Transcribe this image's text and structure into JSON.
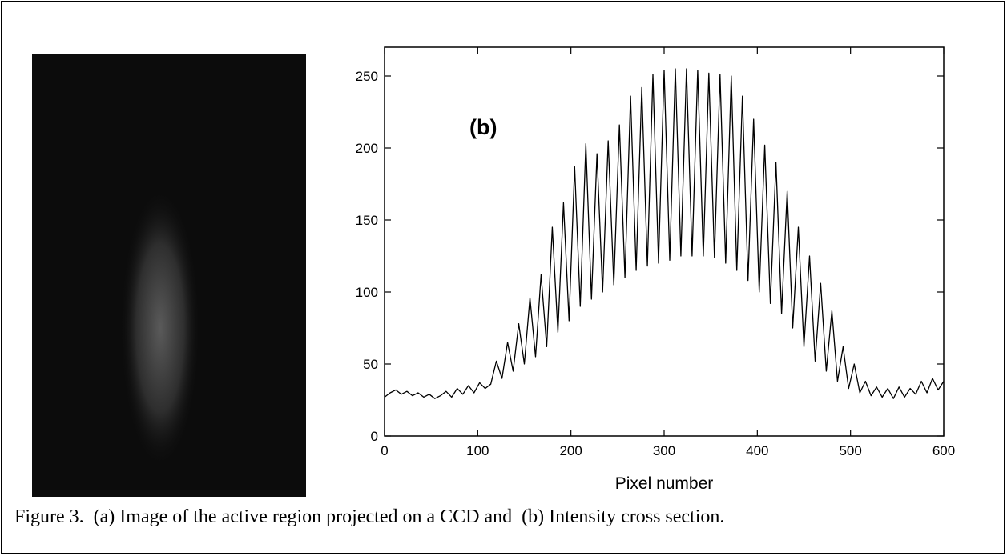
{
  "chart_data": {
    "type": "line",
    "annotation": "(b)",
    "xlabel": "Pixel number",
    "xlim": [
      0,
      600
    ],
    "xticks": [
      0,
      100,
      200,
      300,
      400,
      500,
      600
    ],
    "ylim": [
      0,
      270
    ],
    "yticks": [
      0,
      50,
      100,
      150,
      200,
      250
    ],
    "x": [
      0,
      6,
      12,
      18,
      24,
      30,
      36,
      42,
      48,
      54,
      60,
      66,
      72,
      78,
      84,
      90,
      96,
      102,
      108,
      114,
      120,
      126,
      132,
      138,
      144,
      150,
      156,
      162,
      168,
      174,
      180,
      186,
      192,
      198,
      204,
      210,
      216,
      222,
      228,
      234,
      240,
      246,
      252,
      258,
      264,
      270,
      276,
      282,
      288,
      294,
      300,
      306,
      312,
      318,
      324,
      330,
      336,
      342,
      348,
      354,
      360,
      366,
      372,
      378,
      384,
      390,
      396,
      402,
      408,
      414,
      420,
      426,
      432,
      438,
      444,
      450,
      456,
      462,
      468,
      474,
      480,
      486,
      492,
      498,
      504,
      510,
      516,
      522,
      528,
      534,
      540,
      546,
      552,
      558,
      564,
      570,
      576,
      582,
      588,
      594,
      600
    ],
    "series": [
      {
        "color": "#000000",
        "values": [
          27,
          30,
          32,
          29,
          31,
          28,
          30,
          27,
          29,
          26,
          28,
          31,
          27,
          33,
          29,
          35,
          30,
          37,
          33,
          36,
          52,
          40,
          65,
          45,
          78,
          50,
          96,
          55,
          112,
          62,
          145,
          72,
          162,
          80,
          187,
          90,
          203,
          95,
          196,
          100,
          205,
          105,
          216,
          110,
          236,
          115,
          242,
          118,
          251,
          120,
          254,
          122,
          255,
          125,
          255,
          125,
          254,
          125,
          252,
          124,
          251,
          120,
          250,
          115,
          236,
          108,
          220,
          100,
          202,
          92,
          190,
          85,
          170,
          75,
          145,
          62,
          125,
          52,
          106,
          45,
          87,
          38,
          62,
          33,
          50,
          30,
          38,
          28,
          34,
          27,
          33,
          26,
          34,
          27,
          33,
          29,
          38,
          30,
          40,
          32,
          38
        ]
      }
    ]
  },
  "caption": "Figure 3.  (a) Image of the active region projected on a CCD and  (b) Intensity cross section."
}
